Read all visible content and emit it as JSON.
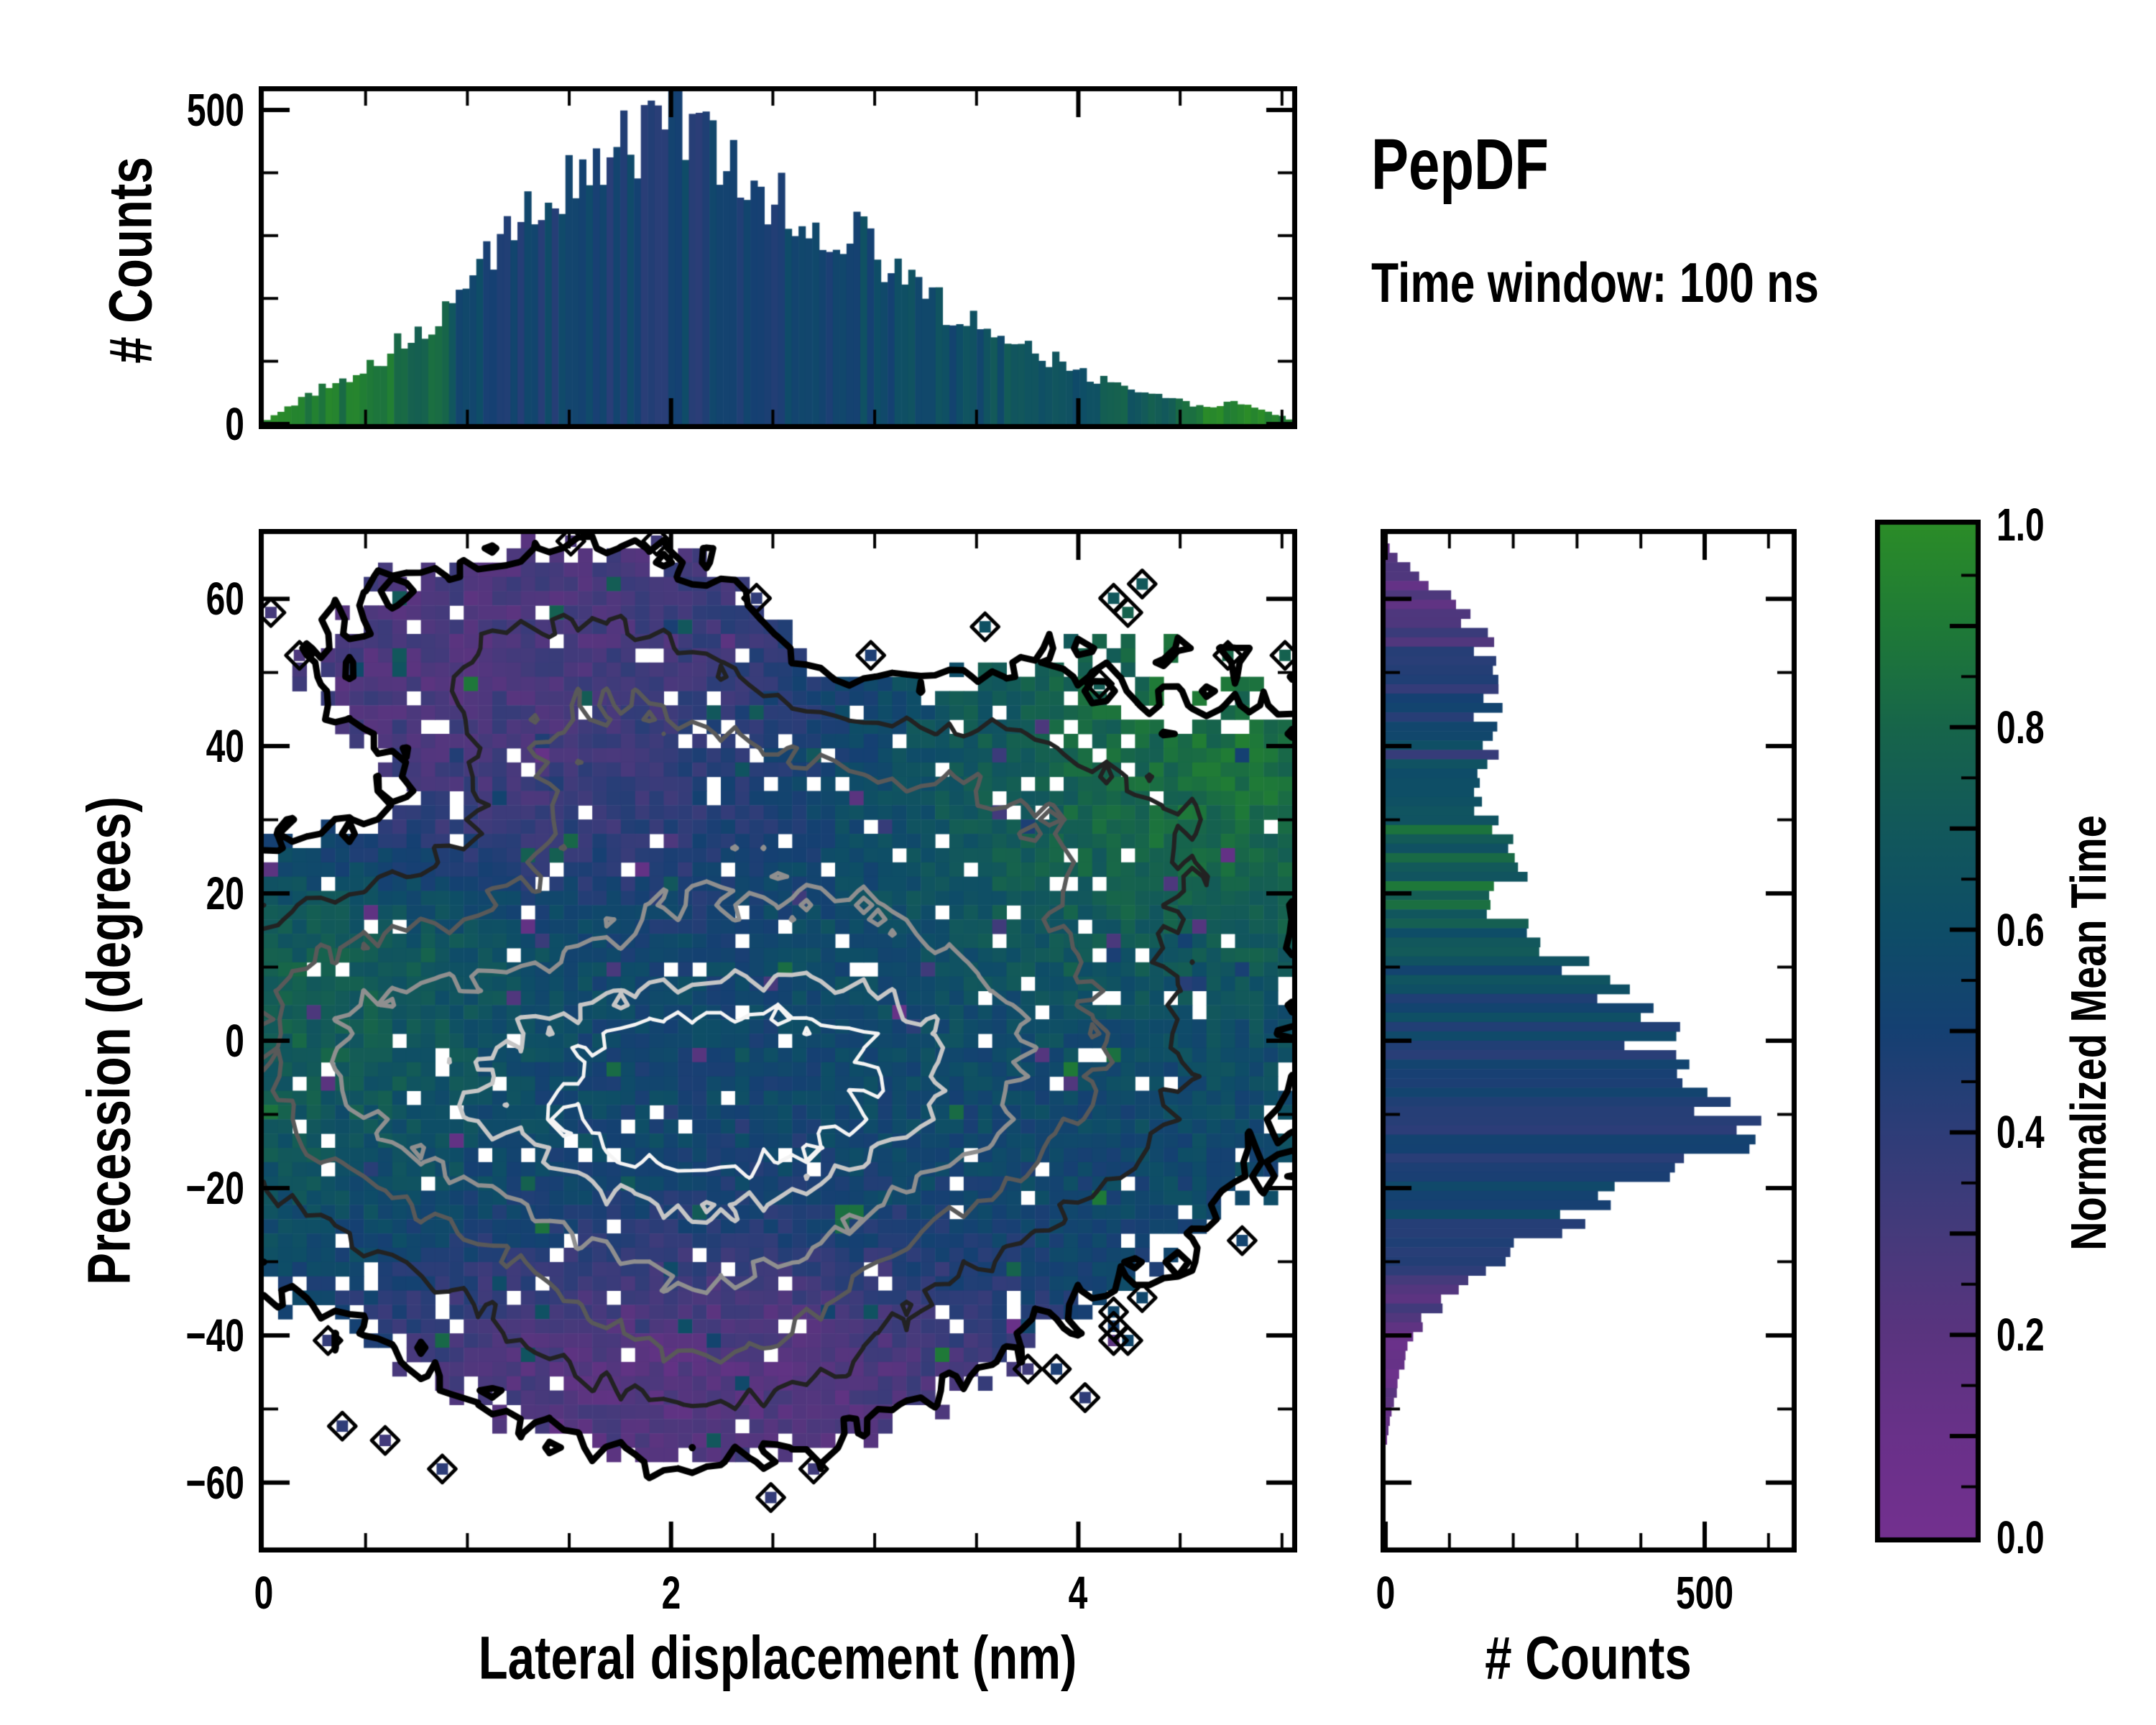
{
  "title": {
    "text": "PepDF",
    "subtitle": "Time window: 100 ns"
  },
  "colors": {
    "background": "#ffffff",
    "axis": "#000000",
    "colormap_stops": [
      [
        0.0,
        "#73308f"
      ],
      [
        0.1,
        "#693189"
      ],
      [
        0.2,
        "#5a347f"
      ],
      [
        0.3,
        "#453a7b"
      ],
      [
        0.4,
        "#2e3d78"
      ],
      [
        0.5,
        "#154072"
      ],
      [
        0.6,
        "#0e4d67"
      ],
      [
        0.7,
        "#12585b"
      ],
      [
        0.8,
        "#17654a"
      ],
      [
        0.9,
        "#1f7a37"
      ],
      [
        1.0,
        "#2b8c28"
      ]
    ]
  },
  "chart_data": [
    {
      "id": "top-histogram",
      "type": "bar",
      "orientation": "vertical",
      "ylabel": "# Counts",
      "xlim": [
        0,
        5.05
      ],
      "ylim": [
        0,
        537
      ],
      "yticks": {
        "values": [
          0,
          500
        ],
        "labels": [
          "0",
          "500"
        ],
        "minor_step": 100
      },
      "xticks": {
        "values": [
          0,
          2,
          4
        ],
        "labels": [
          "0",
          "2",
          "4"
        ],
        "minor_step": 0.5
      },
      "bins": 150,
      "series_note": "counts vs lateral displacement, bar color = normalized mean time",
      "profile_x": [
        0,
        0.1,
        0.25,
        0.4,
        0.55,
        0.7,
        0.85,
        1.0,
        1.1,
        1.25,
        1.4,
        1.55,
        1.7,
        1.85,
        1.95,
        2.05,
        2.15,
        2.3,
        2.5,
        2.7,
        2.9,
        3.1,
        3.3,
        3.5,
        3.7,
        3.9,
        4.1,
        4.3,
        4.45,
        4.6,
        4.75,
        4.9,
        5.05
      ],
      "profile_counts": [
        4,
        22,
        50,
        75,
        100,
        135,
        160,
        215,
        280,
        320,
        355,
        395,
        420,
        445,
        460,
        490,
        445,
        420,
        370,
        330,
        300,
        250,
        195,
        165,
        130,
        100,
        70,
        52,
        38,
        28,
        36,
        24,
        5
      ],
      "profile_meantime": [
        0.97,
        0.95,
        0.93,
        0.9,
        0.88,
        0.84,
        0.78,
        0.55,
        0.5,
        0.49,
        0.5,
        0.5,
        0.5,
        0.51,
        0.5,
        0.5,
        0.5,
        0.51,
        0.52,
        0.54,
        0.55,
        0.57,
        0.6,
        0.62,
        0.64,
        0.66,
        0.68,
        0.72,
        0.8,
        0.9,
        0.95,
        0.97,
        0.98
      ],
      "count_noise": 0.16,
      "meantime_noise": 0.09,
      "noise_seed": 7
    },
    {
      "id": "main-heatmap",
      "type": "heatmap",
      "xlabel": "Lateral displacement (nm)",
      "ylabel": "Precession (degrees)",
      "xlim": [
        0,
        5.05
      ],
      "ylim": [
        -68.8,
        68.8
      ],
      "xticks": {
        "values": [
          0,
          2,
          4
        ],
        "labels": [
          "0",
          "2",
          "4"
        ],
        "minor_step": 0.5
      },
      "yticks": {
        "values": [
          -60,
          -40,
          -20,
          0,
          20,
          40,
          60
        ],
        "labels": [
          "−60",
          "−40",
          "−20",
          "0",
          "20",
          "40",
          "60"
        ],
        "minor_step": 10
      },
      "grid_cols": 72,
      "grid_rows": 71,
      "fill_threshold": 0.2,
      "density_gaussians": [
        [
          1.0,
          1.9,
          -6,
          1.05,
          17
        ],
        [
          0.75,
          2.3,
          -12,
          1.35,
          19
        ],
        [
          0.6,
          1.5,
          47,
          0.85,
          13
        ],
        [
          0.45,
          1.9,
          28,
          1.1,
          12
        ],
        [
          0.62,
          3.7,
          33,
          1.05,
          15
        ],
        [
          0.55,
          0.35,
          2,
          0.55,
          16
        ],
        [
          0.5,
          2.15,
          -40,
          0.65,
          11
        ],
        [
          0.5,
          3.5,
          0,
          0.85,
          14
        ],
        [
          -0.38,
          0.62,
          33,
          0.45,
          9
        ],
        [
          -0.3,
          3.0,
          52,
          0.5,
          8
        ],
        [
          -0.22,
          4.2,
          43,
          0.38,
          6
        ]
      ],
      "value_kernels": [
        [
          0.5,
          1.0,
          1.9,
          -6,
          1.3,
          18
        ],
        [
          0.55,
          0.8,
          2.5,
          -14,
          1.6,
          20
        ],
        [
          0.22,
          1.3,
          1.6,
          47,
          1.1,
          15
        ],
        [
          0.25,
          0.9,
          1.9,
          30,
          1.2,
          12
        ],
        [
          0.92,
          1.3,
          3.8,
          33,
          1.2,
          16
        ],
        [
          0.88,
          1.2,
          0.3,
          4,
          0.7,
          15
        ],
        [
          0.8,
          0.5,
          1.1,
          14,
          0.55,
          6
        ],
        [
          0.12,
          1.4,
          2.15,
          -41,
          0.8,
          10
        ],
        [
          0.6,
          0.8,
          3.6,
          0,
          1.0,
          14
        ]
      ],
      "value_base": [
        0.55,
        0.08
      ],
      "contour_levels": [
        0.2,
        0.5,
        0.8,
        1.1,
        1.4,
        1.6
      ],
      "contour_colors": [
        "#000000",
        "#222222",
        "#595959",
        "#8f8f8f",
        "#c6c6c6",
        "#f4f4f4"
      ],
      "contour_widths": [
        9,
        6,
        6,
        6,
        6,
        5
      ],
      "speckle_fraction": 0.055,
      "outlier_fraction": 0.035,
      "value_noise": 0.16,
      "edge_noise": 0.12,
      "contour_jitter": 0.075,
      "isolated_band": [
        0.09,
        0.175
      ],
      "isolated_fraction": 0.07
    },
    {
      "id": "right-histogram",
      "type": "bar",
      "orientation": "horizontal",
      "xlabel": "# Counts",
      "xlim": [
        0,
        636
      ],
      "ylim": [
        -68.8,
        68.8
      ],
      "xticks": {
        "values": [
          0,
          500
        ],
        "labels": [
          "0",
          "500"
        ],
        "minor_step": 100
      },
      "yticks": {
        "values": [
          -60,
          -40,
          -20,
          0,
          20,
          40,
          60
        ],
        "minor_step": 10
      },
      "bins": 108,
      "series_note": "counts vs precession, bar color = normalized mean time",
      "profile_y": [
        -56,
        -53,
        -50,
        -46,
        -42,
        -38,
        -34,
        -31,
        -28,
        -25,
        -22,
        -19,
        -16,
        -13,
        -11,
        -9,
        -7,
        -5,
        -3,
        -1,
        2,
        5,
        8,
        11,
        14,
        17,
        20,
        23,
        26,
        30,
        34,
        38,
        42,
        46,
        50,
        54,
        58,
        61,
        64,
        67,
        68.5
      ],
      "profile_counts": [
        0,
        4,
        10,
        20,
        35,
        60,
        105,
        160,
        220,
        280,
        340,
        420,
        470,
        540,
        585,
        550,
        505,
        465,
        445,
        425,
        405,
        385,
        330,
        280,
        230,
        185,
        165,
        225,
        190,
        160,
        158,
        165,
        158,
        163,
        158,
        150,
        130,
        90,
        40,
        6,
        0
      ],
      "profile_meantime": [
        0.12,
        0.12,
        0.13,
        0.15,
        0.17,
        0.2,
        0.28,
        0.38,
        0.45,
        0.5,
        0.5,
        0.5,
        0.5,
        0.5,
        0.5,
        0.5,
        0.5,
        0.51,
        0.52,
        0.52,
        0.53,
        0.55,
        0.58,
        0.62,
        0.65,
        0.68,
        0.72,
        0.75,
        0.72,
        0.7,
        0.62,
        0.55,
        0.5,
        0.45,
        0.38,
        0.32,
        0.27,
        0.24,
        0.22,
        0.2,
        0.2
      ],
      "count_noise": 0.14,
      "meantime_noise": 0.1,
      "streak_zone": [
        18,
        45
      ],
      "streak_noise": 0.12,
      "noise_seed": 13
    },
    {
      "id": "colorbar",
      "type": "colorbar",
      "label": "Normalized Mean Time",
      "lim": [
        0,
        1
      ],
      "ticks": {
        "values": [
          0.0,
          0.2,
          0.4,
          0.6,
          0.8,
          1.0
        ],
        "labels": [
          "0.0",
          "0.2",
          "0.4",
          "0.6",
          "0.8",
          "1.0"
        ],
        "major_step": 0.1,
        "minor_step": 0.05
      }
    }
  ]
}
